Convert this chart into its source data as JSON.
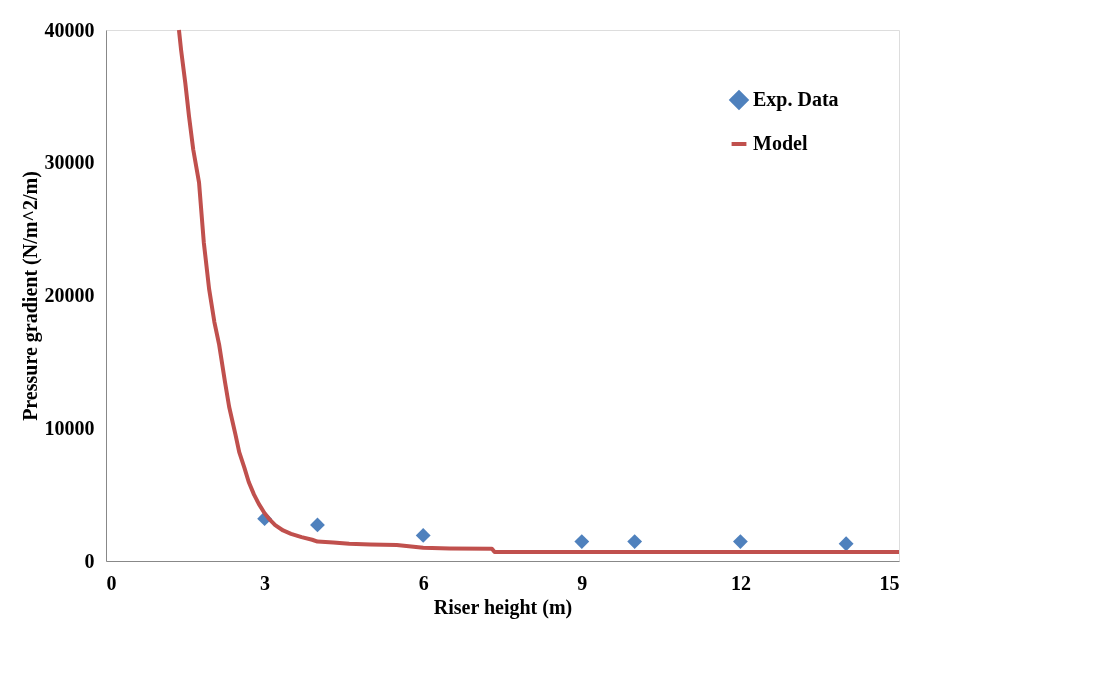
{
  "chart_data": {
    "type": "scatter",
    "xlabel": "Riser height (m)",
    "ylabel": "Pressure gradient (N/m^2/m)",
    "xlim": [
      0,
      15
    ],
    "xticks": [
      0,
      3,
      6,
      9,
      12,
      15
    ],
    "ylim": [
      0,
      40000
    ],
    "yticks": [
      0,
      10000,
      20000,
      30000,
      40000
    ],
    "grid": false,
    "legend": "top right",
    "series": [
      {
        "name": "Exp. Data",
        "marker": "diamond",
        "color": "#4f81bd",
        "x": [
          3,
          4,
          6,
          9,
          10,
          12,
          14
        ],
        "values": [
          3190,
          2720,
          1930,
          1460,
          1460,
          1460,
          1300
        ]
      },
      {
        "name": "Model",
        "type": "line",
        "marker": "none",
        "line_style": "solid",
        "color": "#c0504d",
        "x": [
          1.38,
          1.42,
          1.5,
          1.57,
          1.65,
          1.76,
          1.85,
          1.95,
          2.05,
          2.14,
          2.25,
          2.33,
          2.45,
          2.52,
          2.62,
          2.7,
          2.8,
          2.89,
          3.0,
          3.08,
          3.2,
          3.35,
          3.5,
          3.7,
          3.9,
          4.0,
          4.3,
          4.6,
          5.0,
          5.5,
          6.0,
          6.5,
          7.3,
          7.35,
          15
        ],
        "values": [
          40000,
          38500,
          36000,
          33500,
          31000,
          28500,
          24000,
          20500,
          18000,
          16300,
          13500,
          11600,
          9500,
          8200,
          7000,
          5950,
          5000,
          4300,
          3600,
          3200,
          2700,
          2300,
          2050,
          1800,
          1600,
          1460,
          1400,
          1300,
          1240,
          1200,
          1000,
          950,
          930,
          680,
          680
        ]
      }
    ]
  }
}
